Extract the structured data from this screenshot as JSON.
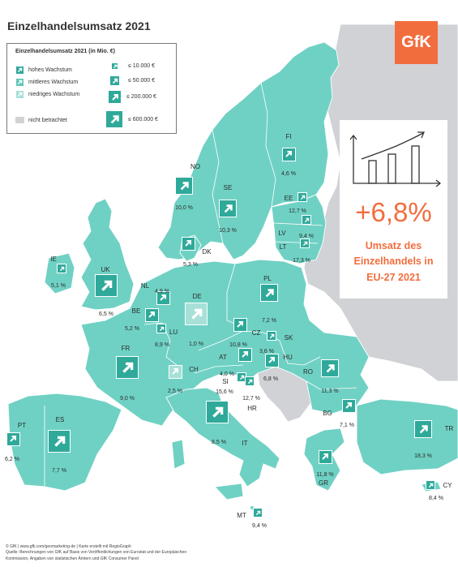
{
  "title": "Einzelhandelsumsatz 2021",
  "logo": "GfK",
  "legend": {
    "title": "Einzelhandelsumsatz 2021 (in Mio. €)",
    "growth": [
      {
        "label": "hohes Wachstum",
        "color": "#2fa99a"
      },
      {
        "label": "mittleres Wachstum",
        "color": "#5fc7b8"
      },
      {
        "label": "niedriges Wachstum",
        "color": "#a6e0d7"
      }
    ],
    "not_considered": {
      "label": "nicht betrachtet",
      "color": "#d0d2d6"
    },
    "sizes": [
      "≤   10.000 €",
      "≤   50.000 €",
      "≤ 200.000 €",
      "≤ 600.000 €"
    ]
  },
  "highlight": {
    "value": "+6,8%",
    "description": [
      "Umsatz des",
      "Einzelhandels in",
      "EU-27 2021"
    ]
  },
  "colors": {
    "land": "#6fd1c4",
    "not_considered": "#d0d2d6",
    "accent": "#f26d3d",
    "arrow_high": "#2fa99a",
    "arrow_mid": "#5fc7b8",
    "arrow_low": "#a6e0d7"
  },
  "countries": [
    {
      "code": "FI",
      "value": "4,6 %",
      "growth": "high",
      "size": 2
    },
    {
      "code": "NO",
      "value": "10,0 %",
      "growth": "high",
      "size": 3
    },
    {
      "code": "SE",
      "value": "10,3 %",
      "growth": "high",
      "size": 3
    },
    {
      "code": "EE",
      "value": "12,7 %",
      "growth": "high",
      "size": 1
    },
    {
      "code": "LV",
      "value": "9,4 %",
      "growth": "high",
      "size": 1
    },
    {
      "code": "LT",
      "value": "17,3 %",
      "growth": "high",
      "size": 1
    },
    {
      "code": "DK",
      "value": "5,3 %",
      "growth": "high",
      "size": 2
    },
    {
      "code": "IE",
      "value": "5,1 %",
      "growth": "high",
      "size": 1
    },
    {
      "code": "UK",
      "value": "6,5 %",
      "growth": "high",
      "size": 4
    },
    {
      "code": "NL",
      "value": "4,9 %",
      "growth": "high",
      "size": 2
    },
    {
      "code": "BE",
      "value": "5,2 %",
      "growth": "high",
      "size": 2
    },
    {
      "code": "LU",
      "value": "8,9 %",
      "growth": "high",
      "size": 1
    },
    {
      "code": "DE",
      "value": "1,0 %",
      "growth": "low",
      "size": 4
    },
    {
      "code": "PL",
      "value": "7,2 %",
      "growth": "high",
      "size": 3
    },
    {
      "code": "CZ",
      "value": "10,8 %",
      "growth": "high",
      "size": 2
    },
    {
      "code": "SK",
      "value": "3,6 %",
      "growth": "high",
      "size": 1
    },
    {
      "code": "AT",
      "value": "4,0 %",
      "growth": "high",
      "size": 2
    },
    {
      "code": "HU",
      "value": "6,8 %",
      "growth": "high",
      "size": 2
    },
    {
      "code": "CH",
      "value": "2,5 %",
      "growth": "low",
      "size": 2
    },
    {
      "code": "SI",
      "value": "15,6 %",
      "growth": "high",
      "size": 1
    },
    {
      "code": "HR",
      "value": "12,7 %",
      "growth": "high",
      "size": 1
    },
    {
      "code": "FR",
      "value": "9,0 %",
      "growth": "high",
      "size": 4
    },
    {
      "code": "RO",
      "value": "11,3 %",
      "growth": "high",
      "size": 3
    },
    {
      "code": "BG",
      "value": "7,1 %",
      "growth": "high",
      "size": 2
    },
    {
      "code": "IT",
      "value": "8,5 %",
      "growth": "high",
      "size": 4
    },
    {
      "code": "ES",
      "value": "7,7 %",
      "growth": "high",
      "size": 4
    },
    {
      "code": "PT",
      "value": "6,2 %",
      "growth": "high",
      "size": 2
    },
    {
      "code": "TR",
      "value": "18,3 %",
      "growth": "high",
      "size": 3
    },
    {
      "code": "GR",
      "value": "11,8 %",
      "growth": "high",
      "size": 2
    },
    {
      "code": "CY",
      "value": "8,4 %",
      "growth": "high",
      "size": 1
    },
    {
      "code": "MT",
      "value": "9,4 %",
      "growth": "high",
      "size": 1
    }
  ],
  "footer": [
    "© GfK | www.gfk.com/geomarketing-de | Karte erstellt mit RegioGraph",
    "Quelle: Berechnungen von GfK auf Basis von Veröffentlichungen von Eurostat und der Europäischen",
    "Kommission, Angaben von statistischen Ämtern und GfK Consumer Panel"
  ]
}
